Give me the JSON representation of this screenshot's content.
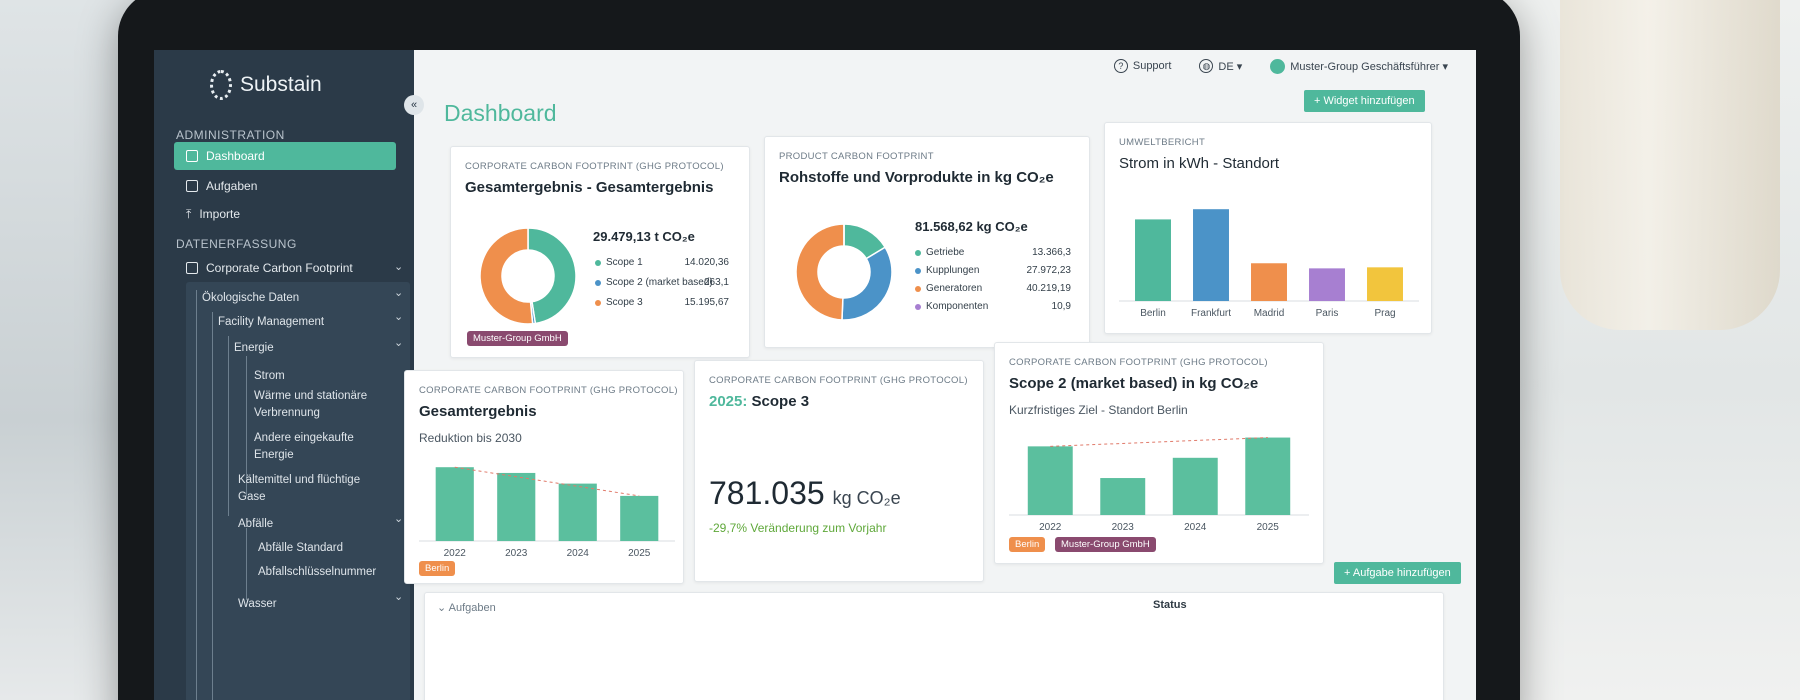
{
  "app": {
    "logo": "Substain",
    "page_title": "Dashboard",
    "collapse_icon": "«"
  },
  "topbar": {
    "support": "Support",
    "language": "DE ▾",
    "user": "Muster-Group Geschäftsführer ▾"
  },
  "sidebar": {
    "section_admin": "ADMINISTRATION",
    "admin_items": [
      "Dashboard",
      "Aufgaben",
      "Importe"
    ],
    "section_data": "DATENERFASSUNG",
    "ccf": "Corporate Carbon Footprint",
    "tree": {
      "oeko": "Ökologische Daten",
      "facility": "Facility Management",
      "energie": "Energie",
      "strom": "Strom",
      "waerme1": "Wärme und stationäre",
      "waerme2": "Verbrennung",
      "andere1": "Andere eingekaufte",
      "andere2": "Energie",
      "kaelte1": "Kältemittel und flüchtige",
      "kaelte2": "Gase",
      "abfaelle": "Abfälle",
      "abfaelle_std": "Abfälle Standard",
      "abfall_key": "Abfallschlüsselnummer",
      "wasser": "Wasser"
    }
  },
  "actions": {
    "add_widget": "+ Widget hinzufügen",
    "add_task": "+ Aufgabe hinzufügen",
    "tasks_section": "Aufgaben",
    "status_col": "Status"
  },
  "colors": {
    "accent": "#4fb89c",
    "sidebar": "#2b3a48",
    "orange": "#ef8f4c",
    "blue": "#4b93c8",
    "purple": "#a77fd1",
    "yellow": "#f2c53d",
    "badge_purple": "#8a4a6f"
  },
  "cards": {
    "c1": {
      "kicker": "CORPORATE CARBON FOOTPRINT (GHG PROTOCOL)",
      "title": "Gesamtergebnis - Gesamtergebnis",
      "total": "29.479,13 t CO₂e",
      "badge": "Muster-Group GmbH",
      "legend": [
        {
          "label": "Scope 1",
          "value": "14.020,36"
        },
        {
          "label": "Scope 2 (market based)",
          "value": "263,1"
        },
        {
          "label": "Scope 3",
          "value": "15.195,67"
        }
      ]
    },
    "c2": {
      "kicker": "PRODUCT CARBON FOOTPRINT",
      "title": "Rohstoffe und Vorprodukte in kg CO₂e",
      "total": "81.568,62 kg CO₂e",
      "legend": [
        {
          "label": "Getriebe",
          "value": "13.366,3"
        },
        {
          "label": "Kupplungen",
          "value": "27.972,23"
        },
        {
          "label": "Generatoren",
          "value": "40.219,19"
        },
        {
          "label": "Komponenten",
          "value": "10,9"
        }
      ]
    },
    "c3": {
      "kicker": "UMWELTBERICHT",
      "title": "Strom in kWh - Standort"
    },
    "c4": {
      "kicker": "CORPORATE CARBON FOOTPRINT (GHG PROTOCOL)",
      "title": "Gesamtergebnis",
      "subtitle": "Reduktion bis 2030",
      "badge": "Berlin"
    },
    "c5": {
      "kicker": "CORPORATE CARBON FOOTPRINT (GHG PROTOCOL)",
      "year": "2025:",
      "title": "Scope 3",
      "value": "781.035",
      "unit": "kg CO₂e",
      "change": "-29,7% Veränderung zum Vorjahr"
    },
    "c6": {
      "kicker": "CORPORATE CARBON FOOTPRINT (GHG PROTOCOL)",
      "title": "Scope 2 (market based) in kg CO₂e",
      "subtitle": "Kurzfristiges Ziel - Standort Berlin",
      "badge1": "Berlin",
      "badge2": "Muster-Group GmbH"
    }
  },
  "chart_data": [
    {
      "type": "pie",
      "categories": [
        "Scope 1",
        "Scope 2 (market based)",
        "Scope 3"
      ],
      "values": [
        14020.36,
        263.1,
        15195.67
      ],
      "colors": [
        "#4fb89c",
        "#4b93c8",
        "#ef8f4c"
      ]
    },
    {
      "type": "pie",
      "categories": [
        "Getriebe",
        "Kupplungen",
        "Generatoren",
        "Komponenten"
      ],
      "values": [
        13366.3,
        27972.23,
        40219.19,
        10.9
      ],
      "colors": [
        "#4fb89c",
        "#4b93c8",
        "#ef8f4c",
        "#a77fd1"
      ]
    },
    {
      "type": "bar",
      "categories": [
        "Berlin",
        "Frankfurt",
        "Madrid",
        "Paris",
        "Prag"
      ],
      "values": [
        80,
        90,
        37,
        32,
        33
      ],
      "colors": [
        "#4fb89c",
        "#4b93c8",
        "#ef8f4c",
        "#a77fd1",
        "#f2c53d"
      ],
      "ylim": [
        0,
        100
      ]
    },
    {
      "type": "bar",
      "categories": [
        "2022",
        "2023",
        "2024",
        "2025"
      ],
      "values": [
        90,
        83,
        70,
        55
      ],
      "ylim": [
        0,
        100
      ]
    },
    {
      "type": "bar",
      "categories": [
        "2022",
        "2023",
        "2024",
        "2025"
      ],
      "values": [
        78,
        42,
        65,
        88
      ],
      "ylim": [
        0,
        100
      ]
    }
  ]
}
